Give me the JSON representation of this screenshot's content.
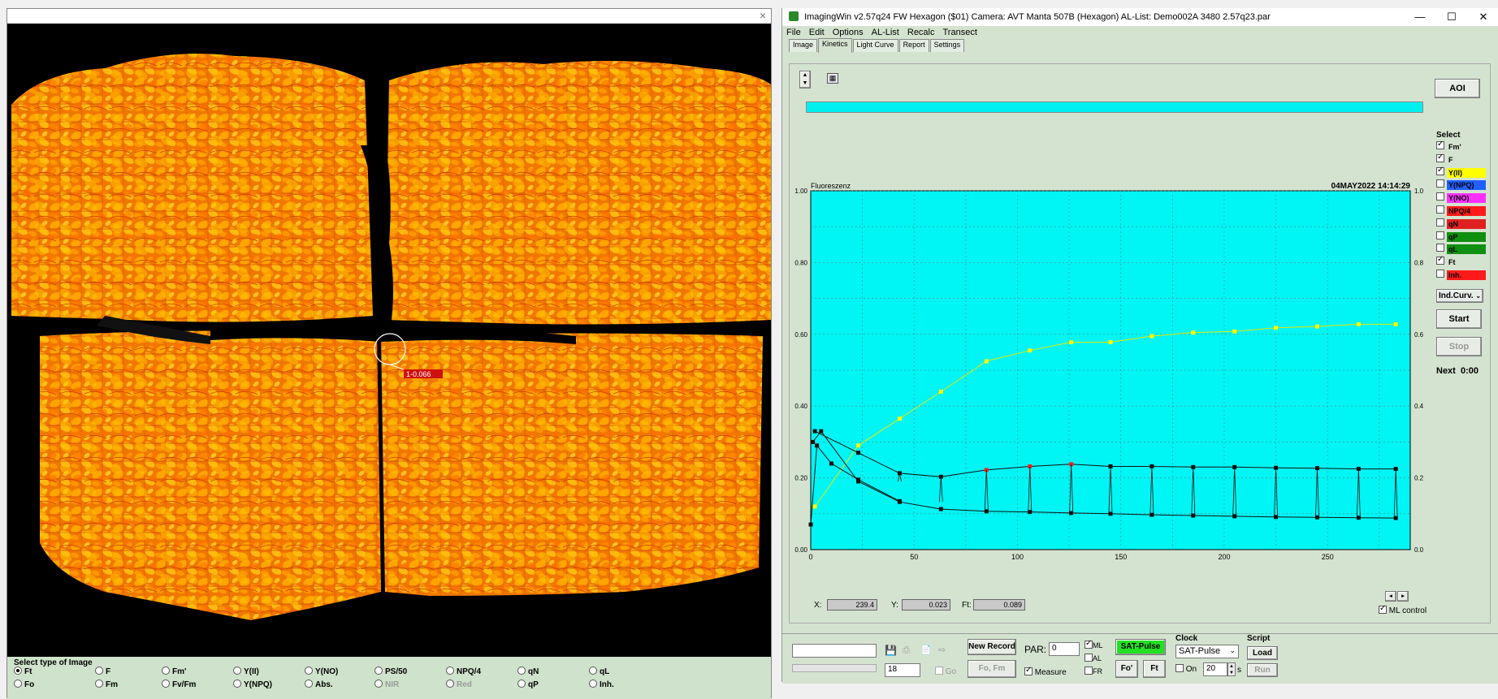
{
  "left_window": {
    "close": "×",
    "cursor_label": "1-0.066",
    "type_panel_title": "Select type of Image",
    "types_row1": [
      {
        "label": "Ft",
        "selected": true,
        "disabled": false
      },
      {
        "label": "F",
        "selected": false,
        "disabled": false
      },
      {
        "label": "Fm'",
        "selected": false,
        "disabled": false
      },
      {
        "label": "Y(II)",
        "selected": false,
        "disabled": false
      },
      {
        "label": "Y(NO)",
        "selected": false,
        "disabled": false
      },
      {
        "label": "PS/50",
        "selected": false,
        "disabled": false
      },
      {
        "label": "NPQ/4",
        "selected": false,
        "disabled": false
      },
      {
        "label": "qN",
        "selected": false,
        "disabled": false
      },
      {
        "label": "qL",
        "selected": false,
        "disabled": false
      }
    ],
    "types_row2": [
      {
        "label": "Fo",
        "selected": false,
        "disabled": false
      },
      {
        "label": "Fm",
        "selected": false,
        "disabled": false
      },
      {
        "label": "Fv/Fm",
        "selected": false,
        "disabled": false
      },
      {
        "label": "Y(NPQ)",
        "selected": false,
        "disabled": false
      },
      {
        "label": "Abs.",
        "selected": false,
        "disabled": false
      },
      {
        "label": "NIR",
        "selected": false,
        "disabled": true
      },
      {
        "label": "Red",
        "selected": false,
        "disabled": true
      },
      {
        "label": "qP",
        "selected": false,
        "disabled": false
      },
      {
        "label": "Inh.",
        "selected": false,
        "disabled": false
      }
    ]
  },
  "app": {
    "title": "ImagingWin v2.57q24  FW Hexagon  ($01)      Camera: AVT Manta 507B (Hexagon)     AL-List: Demo002A 3480 2.57q23.par",
    "win_min": "—",
    "win_max": "☐",
    "win_close": "✕",
    "menu": [
      "File",
      "Edit",
      "Options",
      "AL-List",
      "Recalc",
      "Transect"
    ],
    "tabs": [
      {
        "label": "Image",
        "active": false
      },
      {
        "label": "Kinetics",
        "active": true
      },
      {
        "label": "Light Curve",
        "active": false
      },
      {
        "label": "Report",
        "active": false
      },
      {
        "label": "Settings",
        "active": false
      }
    ],
    "aoi_button": "AOI",
    "select_title": "Select",
    "select_items": [
      {
        "label": "Fm'",
        "checked": true,
        "bg": "#d4e3d0",
        "fg": "#000000"
      },
      {
        "label": "F",
        "checked": true,
        "bg": "#d4e3d0",
        "fg": "#000000"
      },
      {
        "label": "Y(II)",
        "checked": true,
        "bg": "#ffff00",
        "fg": "#000000"
      },
      {
        "label": "Y(NPQ)",
        "checked": false,
        "bg": "#2060ff",
        "fg": "#000000"
      },
      {
        "label": "Y(NO)",
        "checked": false,
        "bg": "#ff30ff",
        "fg": "#000000"
      },
      {
        "label": "NPQ/4",
        "checked": false,
        "bg": "#ff1a1a",
        "fg": "#000000"
      },
      {
        "label": "qN",
        "checked": false,
        "bg": "#e02020",
        "fg": "#000000"
      },
      {
        "label": "qP",
        "checked": false,
        "bg": "#109010",
        "fg": "#000000"
      },
      {
        "label": "qL",
        "checked": false,
        "bg": "#109010",
        "fg": "#000000"
      },
      {
        "label": "Ft",
        "checked": true,
        "bg": "#d4e3d0",
        "fg": "#000000"
      },
      {
        "label": "Inh.",
        "checked": false,
        "bg": "#ff1a1a",
        "fg": "#000000"
      }
    ],
    "indcurv": "Ind.Curv.",
    "start": "Start",
    "stop": "Stop",
    "next_label": "Next",
    "next_value": "0:00",
    "x_label": "X:",
    "x_value": "239.4",
    "y_label": "Y:",
    "y_value": "0.023",
    "ft_label": "Ft:",
    "ft_value": "0.089",
    "ml_control": "ML control",
    "bottom": {
      "field_value": "18",
      "go": "Go",
      "new_record": "New Record",
      "fo_fm": "Fo, Fm",
      "par_label": "PAR:",
      "par_value": "0",
      "ml": "ML",
      "al": "AL",
      "fr": "FR",
      "measure": "Measure",
      "sat_pulse": "SAT-Pulse",
      "fo_btn": "Fo'",
      "ft_btn": "Ft",
      "clock_title": "Clock",
      "clock_select": "SAT-Pulse",
      "on_label": "On",
      "interval": "20",
      "sec": "s",
      "script_title": "Script",
      "load": "Load",
      "run": "Run"
    }
  },
  "chart_data": {
    "type": "line",
    "title": "Fluoreszenz",
    "timestamp": "04MAY2022  14:14:29",
    "xlim": [
      0,
      290
    ],
    "ylim": [
      0,
      1
    ],
    "x_ticks": [
      0,
      50,
      100,
      150,
      200,
      250
    ],
    "y_ticks_left": [
      "0.00",
      "0.20",
      "0.40",
      "0.60",
      "0.80",
      "1.00"
    ],
    "y_ticks_right": [
      "0.0",
      "0.2",
      "0.4",
      "0.6",
      "0.8",
      "1.0"
    ],
    "plot_bg": "#00f5f5",
    "grid": true,
    "series": [
      {
        "color": "#ffff00",
        "line": "#e8e800",
        "points": [
          [
            2,
            0.12
          ],
          [
            23,
            0.29
          ],
          [
            43,
            0.365
          ],
          [
            63,
            0.44
          ],
          [
            85,
            0.525
          ],
          [
            106,
            0.555
          ],
          [
            126,
            0.578
          ],
          [
            145,
            0.578
          ],
          [
            165,
            0.595
          ],
          [
            185,
            0.605
          ],
          [
            205,
            0.608
          ],
          [
            225,
            0.618
          ],
          [
            245,
            0.622
          ],
          [
            265,
            0.628
          ],
          [
            283,
            0.628
          ]
        ]
      },
      {
        "color": "#111111",
        "line": "#111111",
        "points": [
          [
            2,
            0.33
          ],
          [
            23,
            0.27
          ],
          [
            43,
            0.213
          ],
          [
            63,
            0.203
          ],
          [
            85,
            0.222
          ],
          [
            106,
            0.232
          ],
          [
            126,
            0.238
          ],
          [
            145,
            0.232
          ],
          [
            165,
            0.232
          ],
          [
            185,
            0.23
          ],
          [
            205,
            0.23
          ],
          [
            225,
            0.228
          ],
          [
            245,
            0.227
          ],
          [
            265,
            0.225
          ],
          [
            283,
            0.225
          ]
        ],
        "highlight_idx": [
          4,
          5,
          6
        ],
        "highlight_color": "#ff2020"
      },
      {
        "color": "#111111",
        "line": "#111111",
        "points": [
          [
            1,
            0.3
          ],
          [
            5,
            0.33
          ],
          [
            23,
            0.19
          ],
          [
            43,
            0.133
          ],
          [
            63,
            0.113
          ],
          [
            85,
            0.107
          ],
          [
            106,
            0.105
          ],
          [
            126,
            0.102
          ],
          [
            145,
            0.1
          ],
          [
            165,
            0.097
          ],
          [
            185,
            0.095
          ],
          [
            205,
            0.093
          ],
          [
            225,
            0.091
          ],
          [
            245,
            0.09
          ],
          [
            265,
            0.089
          ],
          [
            283,
            0.088
          ]
        ]
      },
      {
        "color": "#111111",
        "line": "#111111",
        "points": [
          [
            0,
            0.07
          ],
          [
            3,
            0.29
          ],
          [
            10,
            0.24
          ],
          [
            23,
            0.195
          ],
          [
            43,
            0.135
          ]
        ]
      }
    ]
  }
}
